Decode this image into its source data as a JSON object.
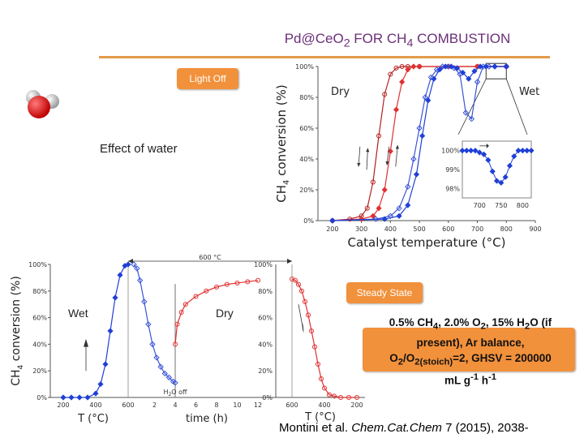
{
  "slide": {
    "title_main": "Pd@CeO",
    "title_sub1": "2",
    "title_mid": " FOR CH",
    "title_sub2": "4",
    "title_end": " COMBUSTION",
    "light_off_tag": "Light Off",
    "effect_label": "Effect of water",
    "steady_state_tag": "Steady State",
    "wet_label_bottom": "Wet",
    "dry_label_bottom": "Dry",
    "citation_prefix": "Montini et al. ",
    "citation_journal": "Chem.Cat.Chem",
    "citation_suffix": " 7 (2015), 2038-"
  },
  "conditions": {
    "line1": "0.5% CH4, 2.0% O2, 15% H2O (if",
    "line2": "present), Ar balance,",
    "line3": "O2/O2(stoich)=2, GHSV = 200000",
    "line4": "mL g-1 h-1"
  },
  "colors": {
    "dry_red": "#e03030",
    "dry_dark_red": "#b52020",
    "wet_blue": "#1f3fd6",
    "wet_light_blue": "#3a55d8",
    "accent_orange": "#f2913b",
    "title_purple": "#6b2f78"
  },
  "chart_data": [
    {
      "type": "line",
      "title": "",
      "xlabel": "Catalyst temperature (°C)",
      "ylabel": "CH4 conversion (%)",
      "xlim": [
        150,
        900
      ],
      "ylim": [
        0,
        100
      ],
      "x_ticks": [
        "200",
        "300",
        "400",
        "500",
        "600",
        "700",
        "800",
        "900"
      ],
      "y_ticks": [
        "0%",
        "20%",
        "40%",
        "60%",
        "80%",
        "100%"
      ],
      "annotations": [
        "Dry",
        "Wet"
      ],
      "series": [
        {
          "name": "Dry",
          "color": "#b52020",
          "x": [
            200,
            260,
            300,
            320,
            340,
            360,
            380,
            400,
            420,
            440,
            460,
            500,
            600,
            700,
            800
          ],
          "y": [
            0,
            1,
            3,
            8,
            25,
            55,
            82,
            95,
            99,
            100,
            100,
            100,
            100,
            100,
            100
          ]
        },
        {
          "name": "Dry",
          "color": "#e03030",
          "x": [
            200,
            300,
            340,
            360,
            380,
            400,
            420,
            440,
            460,
            480,
            500,
            600,
            700,
            800
          ],
          "y": [
            0,
            1,
            3,
            8,
            20,
            45,
            72,
            90,
            98,
            100,
            100,
            100,
            100,
            100
          ]
        },
        {
          "name": "Wet",
          "color": "#3a55d8",
          "x": [
            200,
            350,
            400,
            430,
            460,
            480,
            500,
            520,
            540,
            560,
            580,
            600,
            620,
            640,
            660,
            680,
            700,
            720,
            740,
            760,
            800
          ],
          "y": [
            0,
            1,
            3,
            8,
            22,
            40,
            60,
            80,
            93,
            98,
            100,
            100,
            99,
            95,
            70,
            66,
            90,
            100,
            100,
            100,
            100
          ]
        },
        {
          "name": "Wet",
          "color": "#1f3fd6",
          "x": [
            200,
            380,
            430,
            460,
            490,
            510,
            530,
            550,
            570,
            590,
            610,
            630,
            650,
            670,
            690,
            710,
            730,
            760,
            800
          ],
          "y": [
            0,
            1,
            3,
            10,
            30,
            55,
            78,
            92,
            98,
            100,
            100,
            99,
            96,
            92,
            97,
            100,
            100,
            100,
            100
          ]
        }
      ]
    },
    {
      "type": "line",
      "title": "",
      "x_range_note": "inset zoom",
      "xlim": [
        660,
        820
      ],
      "ylim": [
        97.5,
        100.5
      ],
      "x_ticks": [
        "700",
        "750",
        "800"
      ],
      "y_ticks": [
        "98%",
        "99%",
        "100%"
      ],
      "series": [
        {
          "color": "#1f3fd6",
          "x": [
            660,
            670,
            680,
            690,
            700,
            710,
            720,
            730,
            740,
            750,
            760,
            770,
            780,
            790,
            800,
            810,
            820
          ],
          "y": [
            100,
            100,
            100,
            100,
            99.9,
            99.8,
            99.5,
            98.9,
            98.4,
            98.3,
            98.6,
            99.2,
            99.7,
            100,
            100,
            100,
            100
          ]
        }
      ]
    },
    {
      "type": "line",
      "title": "",
      "top_annotation": "600 °C",
      "bottom_annotation": "H2O off",
      "xlabel_left": "T (°C)",
      "xlabel_center": "time (h)",
      "xlabel_right": "T (°C)",
      "ylabel": "CH4 conversion (%)",
      "ylim": [
        0,
        100
      ],
      "y_ticks": [
        "0%",
        "20%",
        "40%",
        "60%",
        "80%",
        "100%"
      ],
      "left_ticks": [
        "200",
        "400",
        "600"
      ],
      "middle_ticks": [
        "2",
        "4",
        "6",
        "8",
        "10",
        "12"
      ],
      "right_ticks": [
        "600",
        "400",
        "200"
      ],
      "right_y_ticks": [
        "0%",
        "20%",
        "40%",
        "60%",
        "80%",
        "100%"
      ],
      "panels": [
        {
          "name": "Wet (heating)",
          "color": "#1f3fd6",
          "x": [
            200,
            250,
            300,
            350,
            400,
            430,
            460,
            490,
            520,
            550,
            580,
            600
          ],
          "y": [
            0,
            0,
            0,
            0,
            3,
            10,
            25,
            50,
            75,
            92,
            99,
            100
          ]
        },
        {
          "name": "Wet (isothermal, 600 °C)",
          "color": "#3a55d8",
          "x": [
            0,
            0.3,
            0.6,
            1.0,
            1.4,
            1.8,
            2.2,
            2.6,
            3.0,
            3.4,
            3.8,
            4.0
          ],
          "y": [
            100,
            97,
            88,
            72,
            55,
            40,
            30,
            23,
            18,
            15,
            12,
            11
          ]
        },
        {
          "name": "Dry (isothermal, 600 °C)",
          "color": "#e03030",
          "x": [
            4.0,
            4.2,
            4.6,
            5.0,
            6.0,
            7.0,
            8.0,
            9.0,
            10.0,
            11.0,
            12.0
          ],
          "y": [
            40,
            55,
            64,
            70,
            76,
            80,
            83,
            85,
            86,
            87,
            88
          ]
        },
        {
          "name": "Dry (cooling)",
          "color": "#e03030",
          "x": [
            600,
            580,
            560,
            540,
            520,
            500,
            480,
            460,
            440,
            420,
            400,
            370,
            340,
            300,
            250,
            200
          ],
          "y": [
            89,
            88,
            85,
            80,
            72,
            62,
            50,
            38,
            25,
            14,
            7,
            2,
            1,
            0,
            0,
            0
          ]
        }
      ]
    }
  ]
}
